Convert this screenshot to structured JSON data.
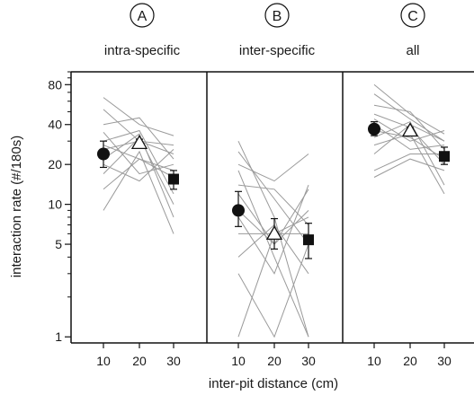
{
  "chart_data": {
    "type": "scatter",
    "y_scale": "log",
    "ylim": [
      0.9,
      100
    ],
    "ylabel": "interaction rate (#/180s)",
    "xlabel": "inter-pit distance (cm)",
    "yticks": [
      {
        "value": 1,
        "label": "1"
      },
      {
        "value": 5,
        "label": "5"
      },
      {
        "value": 10,
        "label": "10"
      },
      {
        "value": 20,
        "label": "20"
      },
      {
        "value": 40,
        "label": "40"
      },
      {
        "value": 80,
        "label": "80"
      }
    ],
    "x_categories": [
      "10",
      "20",
      "30"
    ],
    "panels": [
      {
        "letter": "A",
        "subtitle": "intra-specific",
        "means": [
          {
            "x": "10",
            "y": 24,
            "err_low": 19,
            "err_high": 30,
            "marker": "circle"
          },
          {
            "x": "20",
            "y": 29,
            "err_low": 27,
            "err_high": 31,
            "marker": "triangle"
          },
          {
            "x": "30",
            "y": 15.5,
            "err_low": 13,
            "err_high": 18,
            "marker": "square"
          }
        ],
        "individual_lines": [
          [
            64,
            40,
            33
          ],
          [
            52,
            30,
            28
          ],
          [
            40,
            45,
            22
          ],
          [
            30,
            36,
            12
          ],
          [
            28,
            22,
            18
          ],
          [
            26,
            30,
            24
          ],
          [
            22,
            34,
            8
          ],
          [
            20,
            15,
            26
          ],
          [
            17,
            32,
            10
          ],
          [
            13,
            22,
            16
          ],
          [
            9,
            25,
            6
          ],
          [
            35,
            17,
            20
          ]
        ]
      },
      {
        "letter": "B",
        "subtitle": "inter-specific",
        "means": [
          {
            "x": "10",
            "y": 9,
            "err_low": 6.8,
            "err_high": 12.5,
            "marker": "circle"
          },
          {
            "x": "20",
            "y": 6,
            "err_low": 4.6,
            "err_high": 7.8,
            "marker": "triangle"
          },
          {
            "x": "30",
            "y": 5.4,
            "err_low": 3.9,
            "err_high": 7.2,
            "marker": "square"
          }
        ],
        "individual_lines": [
          [
            30,
            8,
            1
          ],
          [
            25,
            11,
            5
          ],
          [
            20,
            15,
            24
          ],
          [
            18,
            4,
            1
          ],
          [
            14,
            13,
            7
          ],
          [
            12,
            5,
            9
          ],
          [
            9,
            5,
            13
          ],
          [
            8,
            3,
            14
          ],
          [
            6,
            6,
            6
          ],
          [
            4,
            7,
            3
          ],
          [
            3,
            1,
            5
          ],
          [
            1,
            6,
            8
          ]
        ]
      },
      {
        "letter": "C",
        "subtitle": "all",
        "means": [
          {
            "x": "10",
            "y": 37,
            "err_low": 33,
            "err_high": 42,
            "marker": "circle"
          },
          {
            "x": "20",
            "y": 36,
            "err_low": 34,
            "err_high": 38,
            "marker": "triangle"
          },
          {
            "x": "30",
            "y": 23,
            "err_low": 20,
            "err_high": 27,
            "marker": "square"
          }
        ],
        "individual_lines": [
          [
            80,
            48,
            34
          ],
          [
            68,
            44,
            30
          ],
          [
            56,
            50,
            26
          ],
          [
            48,
            38,
            20
          ],
          [
            44,
            30,
            36
          ],
          [
            40,
            26,
            28
          ],
          [
            36,
            32,
            22
          ],
          [
            32,
            42,
            14
          ],
          [
            28,
            34,
            12
          ],
          [
            24,
            40,
            30
          ],
          [
            18,
            24,
            24
          ],
          [
            16,
            22,
            18
          ]
        ]
      }
    ],
    "colors": {
      "individual_lines": "#9a9a9a",
      "markers": "#111111",
      "frame": "#111111"
    }
  }
}
